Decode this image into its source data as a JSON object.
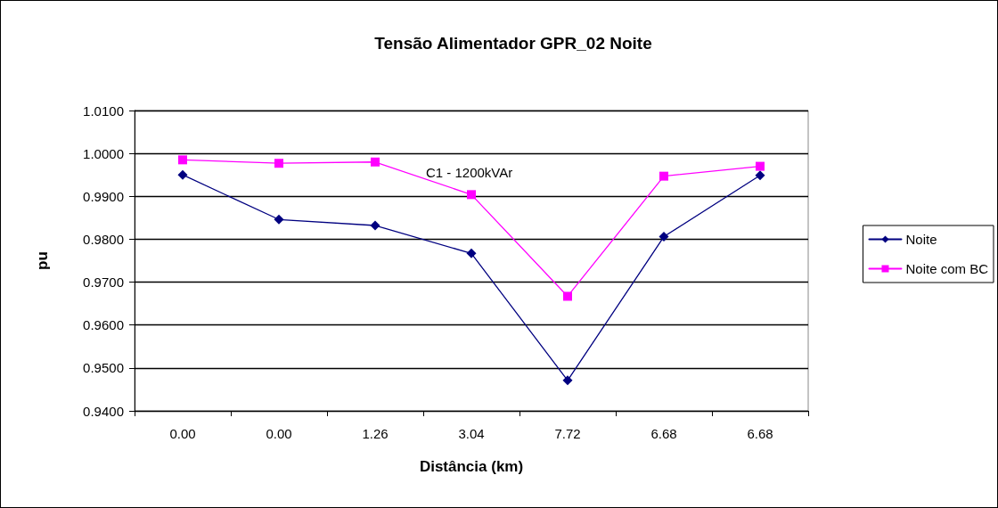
{
  "chart_data": {
    "type": "line",
    "title": "Tensão Alimentador GPR_02 Noite",
    "xlabel": "Distância (km)",
    "ylabel": "pu",
    "categories": [
      "0.00",
      "0.00",
      "1.26",
      "3.04",
      "7.72",
      "6.68",
      "6.68"
    ],
    "series": [
      {
        "name": "Noite",
        "color": "#000080",
        "marker": "diamond",
        "values": [
          0.995,
          0.9846,
          0.9832,
          0.9767,
          0.9471,
          0.9806,
          0.9949
        ]
      },
      {
        "name": "Noite com BC",
        "color": "#ff00ff",
        "marker": "square",
        "values": [
          0.9985,
          0.9977,
          0.998,
          0.9904,
          0.9667,
          0.9947,
          0.997
        ]
      }
    ],
    "ylim": [
      0.94,
      1.01
    ],
    "yticks": [
      {
        "value": 0.94,
        "label": "0.9400"
      },
      {
        "value": 0.95,
        "label": "0.9500"
      },
      {
        "value": 0.96,
        "label": "0.9600"
      },
      {
        "value": 0.97,
        "label": "0.9700"
      },
      {
        "value": 0.98,
        "label": "0.9800"
      },
      {
        "value": 0.99,
        "label": "0.9900"
      },
      {
        "value": 1.0,
        "label": "1.0000"
      },
      {
        "value": 1.01,
        "label": "1.0100"
      }
    ],
    "grid": "y",
    "legend": "right",
    "line_style": "solid",
    "annotations": [
      "C1 - 1200kVAr"
    ]
  }
}
